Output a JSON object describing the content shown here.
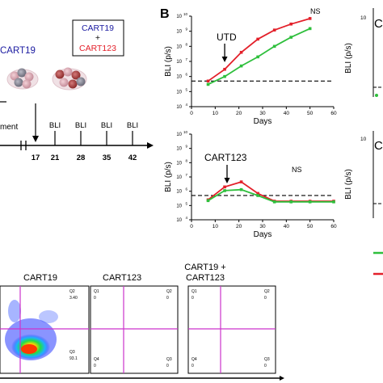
{
  "panel_b_letter": "B",
  "schematic": {
    "cart19_label": "CART19",
    "combo_box_line1": "CART19",
    "combo_box_plus": "+",
    "combo_box_line2": "CART123",
    "treatment_label": "ment",
    "day_17": "17",
    "bli_label": "BLI",
    "bli_days": [
      "21",
      "28",
      "35",
      "42"
    ]
  },
  "flow": {
    "panel_titles": [
      "CART19",
      "CART123",
      "CART19 +\nCART123"
    ],
    "panel1_quadrants": {
      "q1": "Q1",
      "q2": "Q2",
      "q3": "Q3",
      "q4": "Q4",
      "q2_val": "3.40",
      "q4_val": "93.1"
    },
    "panel2_quadrants": {
      "q1": "Q1",
      "q2": "Q2",
      "q3": "Q3",
      "q4": "Q4",
      "q1_val": "0",
      "q2_val": "0",
      "q3_val": "0",
      "q4_val": "0"
    },
    "panel3_quadrants": {
      "q1": "Q1",
      "q2": "Q2",
      "q3": "Q3",
      "q4": "Q4",
      "q1_val": "0",
      "q2_val": "0",
      "q3_val": "0",
      "q4_val": "0"
    }
  },
  "colors": {
    "red": "#e3202a",
    "green": "#2ebf3c",
    "magenta": "#cc33cc"
  },
  "chart_data": [
    {
      "type": "line",
      "annotation": "UTD",
      "ns_label": "NS",
      "xlabel": "Days",
      "ylabel": "BLI (p/s)",
      "xlim": [
        0,
        60
      ],
      "xticks": [
        0,
        10,
        20,
        30,
        40,
        50,
        60
      ],
      "ylim_log10": [
        4,
        10
      ],
      "yticks_exp": [
        "4",
        "5",
        "6",
        "7",
        "8",
        "9",
        "10"
      ],
      "threshold": 500000,
      "arrow_day": 14,
      "series": [
        {
          "color": "#e3202a",
          "x": [
            7,
            14,
            21,
            28,
            35,
            42,
            50
          ],
          "y": [
            500000,
            3000000,
            40000000,
            300000000,
            1200000000,
            3000000000,
            7000000000
          ]
        },
        {
          "color": "#2ebf3c",
          "x": [
            7,
            14,
            21,
            28,
            35,
            42,
            50
          ],
          "y": [
            300000,
            1000000,
            5000000,
            20000000,
            100000000,
            400000000,
            1500000000
          ]
        }
      ]
    },
    {
      "type": "line",
      "annotation": "CART123",
      "ns_label": "NS",
      "xlabel": "Days",
      "ylabel": "BLI (p/s)",
      "xlim": [
        0,
        60
      ],
      "xticks": [
        0,
        10,
        20,
        30,
        40,
        50,
        60
      ],
      "ylim_log10": [
        4,
        10
      ],
      "yticks_exp": [
        "4",
        "5",
        "6",
        "7",
        "8",
        "9",
        "10"
      ],
      "threshold": 500000,
      "arrow_day": 15,
      "series": [
        {
          "color": "#e3202a",
          "x": [
            7,
            14,
            21,
            28,
            35,
            42,
            50,
            60
          ],
          "y": [
            250000,
            2000000,
            4500000,
            700000,
            200000,
            200000,
            200000,
            200000
          ]
        },
        {
          "color": "#2ebf3c",
          "x": [
            7,
            14,
            21,
            28,
            35,
            42,
            50,
            60
          ],
          "y": [
            220000,
            1100000,
            1300000,
            500000,
            180000,
            180000,
            180000,
            180000
          ]
        }
      ]
    }
  ],
  "cropped_panels": {
    "ylabel": "BLI (p/s)",
    "top_tick": "10",
    "tick_base": "10",
    "right_letters": [
      "C",
      "C"
    ]
  }
}
